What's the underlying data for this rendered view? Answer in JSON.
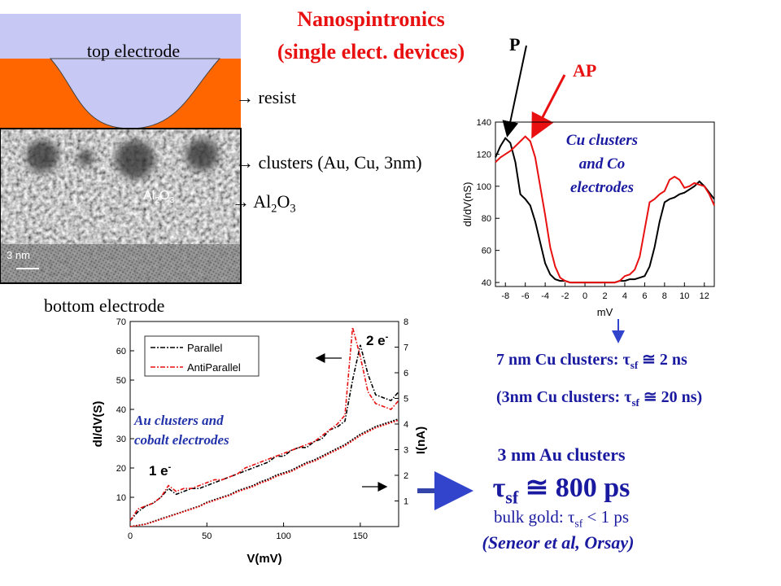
{
  "title": [
    "Nanospintronics",
    "(single elect. devices)"
  ],
  "diagram": {
    "top_electrode": "top electrode",
    "resist": "→ resist",
    "clusters": "→ clusters (Au, Cu, 3nm)",
    "al2o3_label": [
      "→ Al",
      "2",
      "O",
      "3"
    ],
    "al2o3_inset": [
      "Al",
      "2",
      "O",
      "3"
    ],
    "scale": "3 nm",
    "bottom_electrode": "bottom electrode"
  },
  "results": {
    "cu_7nm": [
      "7 nm Cu clusters: τ",
      "sf",
      " ≅ 2 ns"
    ],
    "cu_3nm": [
      "(3nm Cu clusters: τ",
      "sf",
      " ≅ 20 ns)"
    ],
    "au_title": "3 nm Au clusters",
    "au_tau": [
      "τ",
      "sf",
      " ≅ 800 ps"
    ],
    "bulk": [
      "bulk gold: τ",
      "sf",
      " < 1 ps"
    ],
    "ref": "(Seneor et al, Orsay)"
  },
  "chart_data": [
    {
      "type": "line",
      "xlabel": "mV",
      "ylabel": "dI/dV(nS)",
      "xlim": [
        -9,
        13
      ],
      "ylim": [
        37.5,
        140
      ],
      "xticks": [
        -8,
        -6,
        -4,
        -2,
        0,
        2,
        4,
        6,
        8,
        10,
        12
      ],
      "yticks": [
        40,
        60,
        80,
        100,
        120,
        140
      ],
      "annotation": [
        "Cu clusters",
        "and Co",
        "electrodes"
      ],
      "x": [
        -9,
        -8.5,
        -8,
        -7.5,
        -7,
        -6.5,
        -6,
        -5.5,
        -5,
        -4.5,
        -4,
        -3.5,
        -3,
        -2.5,
        -2,
        -1.5,
        -1,
        -0.5,
        0,
        0.5,
        1,
        1.5,
        2,
        2.5,
        3,
        3.5,
        4,
        4.5,
        5,
        5.5,
        6,
        6.5,
        7,
        7.5,
        8,
        8.5,
        9,
        9.5,
        10,
        10.5,
        11,
        11.5,
        12,
        12.5,
        13
      ],
      "series": [
        {
          "name": "P",
          "color": "#000000",
          "values": [
            118,
            125,
            130,
            127,
            115,
            95,
            92,
            88,
            78,
            65,
            52,
            45,
            42,
            41,
            41,
            40,
            40,
            40,
            40,
            40,
            40,
            40,
            40,
            40,
            40,
            41,
            41,
            42,
            42,
            43,
            44,
            50,
            62,
            78,
            90,
            92,
            93,
            95,
            96,
            98,
            100,
            103,
            100,
            96,
            92
          ]
        },
        {
          "name": "AP",
          "color": "#e81010",
          "values": [
            115,
            118,
            120,
            122,
            125,
            128,
            131,
            128,
            118,
            100,
            82,
            62,
            50,
            43,
            41,
            40,
            40,
            40,
            40,
            40,
            40,
            40,
            40,
            40,
            40,
            41,
            44,
            45,
            48,
            56,
            73,
            90,
            92,
            95,
            97,
            104,
            106,
            104,
            99,
            100,
            102,
            101,
            100,
            95,
            88
          ]
        }
      ]
    },
    {
      "type": "line",
      "xlabel": "V(mV)",
      "ylabel": "dI/dV(S)",
      "y2label": "I(nA)",
      "xlim": [
        0,
        175
      ],
      "ylim": [
        0,
        70
      ],
      "y2lim": [
        0,
        8
      ],
      "xticks": [
        0,
        50,
        100,
        150
      ],
      "yticks": [
        10,
        20,
        30,
        40,
        50,
        60,
        70
      ],
      "y2ticks": [
        1,
        2,
        3,
        4,
        5,
        6,
        7,
        8
      ],
      "legend": "upper left",
      "annotation": [
        "Au clusters and",
        "cobalt electrodes"
      ],
      "peaks": [
        [
          "2 e",
          "-"
        ],
        [
          "1 e",
          "-"
        ]
      ],
      "x": [
        0,
        5,
        10,
        15,
        20,
        25,
        30,
        35,
        40,
        45,
        50,
        55,
        60,
        65,
        70,
        75,
        80,
        85,
        90,
        95,
        100,
        105,
        110,
        115,
        120,
        125,
        130,
        135,
        140,
        145,
        150,
        155,
        160,
        165,
        170,
        175
      ],
      "series": [
        {
          "name": "Parallel",
          "color": "#000000",
          "style": "dotted",
          "values": [
            2,
            5,
            7,
            8,
            10,
            13,
            11,
            12,
            13,
            13,
            14,
            15,
            16,
            17,
            18,
            19,
            20,
            21,
            22,
            24,
            24,
            26,
            27,
            27,
            29,
            30,
            33,
            34,
            36,
            50,
            62,
            52,
            45,
            44,
            43,
            46
          ]
        },
        {
          "name": "AntiParallel",
          "color": "#e81010",
          "style": "dotted",
          "values": [
            2,
            6,
            7,
            8,
            10,
            14,
            12,
            13,
            13,
            14,
            15,
            16,
            16,
            17,
            18,
            20,
            21,
            22,
            23,
            24,
            25,
            26,
            27,
            28,
            29,
            31,
            33,
            35,
            38,
            68,
            58,
            46,
            42,
            41,
            40,
            43
          ]
        },
        {
          "color": "#000000",
          "axis": "y2",
          "style": "dotted",
          "values": [
            0,
            0.05,
            0.1,
            0.2,
            0.3,
            0.4,
            0.5,
            0.6,
            0.7,
            0.8,
            0.95,
            1.05,
            1.15,
            1.25,
            1.4,
            1.5,
            1.6,
            1.75,
            1.85,
            2.0,
            2.1,
            2.2,
            2.35,
            2.5,
            2.6,
            2.75,
            2.9,
            3.05,
            3.2,
            3.4,
            3.6,
            3.75,
            3.9,
            4.0,
            4.1,
            4.2
          ]
        },
        {
          "color": "#e81010",
          "axis": "y2",
          "style": "dotted",
          "values": [
            0,
            0.04,
            0.09,
            0.18,
            0.28,
            0.38,
            0.48,
            0.58,
            0.68,
            0.78,
            0.92,
            1.02,
            1.12,
            1.22,
            1.36,
            1.46,
            1.56,
            1.7,
            1.8,
            1.95,
            2.05,
            2.15,
            2.3,
            2.45,
            2.55,
            2.7,
            2.85,
            3.0,
            3.15,
            3.35,
            3.55,
            3.7,
            3.85,
            3.95,
            4.05,
            4.15
          ]
        }
      ]
    }
  ]
}
